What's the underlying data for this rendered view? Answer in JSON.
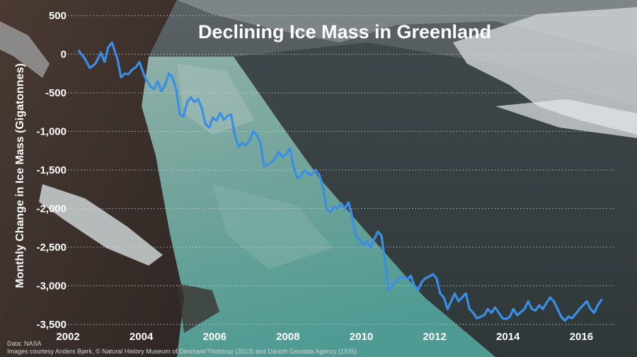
{
  "chart_data": {
    "type": "line",
    "title": "Declining Ice Mass in Greenland",
    "ylabel": "Monthly Change in Ice Mass (Gigatonnes)",
    "xlabel": "",
    "xlim": [
      2002,
      2016.9
    ],
    "ylim": [
      -3500,
      500
    ],
    "x_ticks": [
      2002,
      2004,
      2006,
      2008,
      2010,
      2012,
      2014,
      2016
    ],
    "x_tick_labels": [
      "2002",
      "2004",
      "2006",
      "2008",
      "2010",
      "2012",
      "2014",
      "2016"
    ],
    "y_ticks": [
      500,
      0,
      -500,
      -1000,
      -1500,
      -2000,
      -2500,
      -3000,
      -3500
    ],
    "y_tick_labels": [
      "500",
      "0",
      "-500",
      "-1,000",
      "-1,500",
      "-2,000",
      "-2,500",
      "-3,000",
      "-3,500"
    ],
    "grid": true,
    "legend": "none",
    "line_color": "#3a8ee6",
    "series": [
      {
        "x": [
          2002.3,
          2002.45,
          2002.6,
          2002.75,
          2002.9,
          2003.0,
          2003.1,
          2003.2,
          2003.35,
          2003.45,
          2003.55,
          2003.65,
          2003.75,
          2003.85,
          2003.95,
          2004.1,
          2004.25,
          2004.35,
          2004.45,
          2004.55,
          2004.65,
          2004.75,
          2004.85,
          2004.95,
          2005.05,
          2005.15,
          2005.25,
          2005.35,
          2005.45,
          2005.55,
          2005.65,
          2005.75,
          2005.85,
          2005.95,
          2006.05,
          2006.15,
          2006.25,
          2006.35,
          2006.45,
          2006.55,
          2006.65,
          2006.75,
          2006.85,
          2006.95,
          2007.05,
          2007.15,
          2007.25,
          2007.35,
          2007.45,
          2007.55,
          2007.65,
          2007.75,
          2007.85,
          2007.95,
          2008.05,
          2008.15,
          2008.25,
          2008.35,
          2008.45,
          2008.55,
          2008.65,
          2008.75,
          2008.85,
          2008.95,
          2009.05,
          2009.15,
          2009.25,
          2009.35,
          2009.45,
          2009.55,
          2009.65,
          2009.75,
          2009.85,
          2009.95,
          2010.05,
          2010.15,
          2010.25,
          2010.35,
          2010.45,
          2010.55,
          2010.65,
          2010.75,
          2010.85,
          2010.95,
          2011.05,
          2011.15,
          2011.25,
          2011.35,
          2011.45,
          2011.55,
          2011.65,
          2011.75,
          2011.85,
          2011.95,
          2012.05,
          2012.15,
          2012.25,
          2012.35,
          2012.45,
          2012.55,
          2012.65,
          2012.75,
          2012.85,
          2012.95,
          2013.05,
          2013.15,
          2013.25,
          2013.35,
          2013.45,
          2013.55,
          2013.65,
          2013.75,
          2013.85,
          2013.95,
          2014.05,
          2014.15,
          2014.25,
          2014.35,
          2014.45,
          2014.55,
          2014.65,
          2014.75,
          2014.85,
          2014.95,
          2015.05,
          2015.15,
          2015.25,
          2015.35,
          2015.45,
          2015.55,
          2015.65,
          2015.75,
          2015.85,
          2015.95,
          2016.05,
          2016.15,
          2016.25,
          2016.35,
          2016.45,
          2016.55
        ],
        "values": [
          40,
          -50,
          -180,
          -120,
          20,
          -100,
          90,
          150,
          -60,
          -300,
          -250,
          -260,
          -200,
          -170,
          -100,
          -300,
          -420,
          -450,
          -350,
          -480,
          -400,
          -250,
          -300,
          -450,
          -780,
          -810,
          -620,
          -560,
          -620,
          -580,
          -700,
          -900,
          -950,
          -820,
          -860,
          -760,
          -850,
          -800,
          -780,
          -1050,
          -1200,
          -1150,
          -1180,
          -1120,
          -1000,
          -1050,
          -1150,
          -1450,
          -1430,
          -1400,
          -1350,
          -1270,
          -1330,
          -1300,
          -1220,
          -1450,
          -1600,
          -1580,
          -1500,
          -1550,
          -1560,
          -1500,
          -1560,
          -1700,
          -2000,
          -2050,
          -1980,
          -2000,
          -1930,
          -2000,
          -1920,
          -2100,
          -2350,
          -2400,
          -2480,
          -2420,
          -2500,
          -2400,
          -2300,
          -2350,
          -2700,
          -3050,
          -3000,
          -2930,
          -2900,
          -2880,
          -2920,
          -2870,
          -3000,
          -3050,
          -2950,
          -2900,
          -2880,
          -2850,
          -2900,
          -3100,
          -3150,
          -3300,
          -3200,
          -3100,
          -3200,
          -3150,
          -3100,
          -3300,
          -3350,
          -3420,
          -3400,
          -3380,
          -3300,
          -3350,
          -3280,
          -3350,
          -3420,
          -3430,
          -3400,
          -3300,
          -3380,
          -3340,
          -3300,
          -3200,
          -3300,
          -3320,
          -3250,
          -3300,
          -3220,
          -3150,
          -3200,
          -3300,
          -3400,
          -3450,
          -3400,
          -3420,
          -3360,
          -3300,
          -3250,
          -3200,
          -3300,
          -3350,
          -3250,
          -3180
        ]
      }
    ],
    "source_text": "Data: NASA",
    "image_credit": "Images courtesy Anders Bjørk, © Natural History Museum of Denmark/Tholstrup (2013) and Danish Geodata Agency (1935)"
  }
}
